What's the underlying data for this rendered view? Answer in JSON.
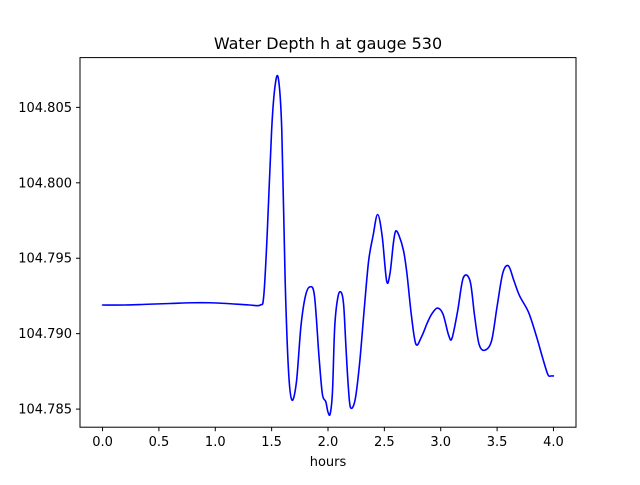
{
  "chart_data": {
    "type": "line",
    "title": "Water Depth h at gauge 530",
    "xlabel": "hours",
    "ylabel": "",
    "xlim": [
      -0.2,
      4.2
    ],
    "ylim": [
      104.7838,
      104.8083
    ],
    "xticks": [
      0.0,
      0.5,
      1.0,
      1.5,
      2.0,
      2.5,
      3.0,
      3.5,
      4.0
    ],
    "xtick_labels": [
      "0.0",
      "0.5",
      "1.0",
      "1.5",
      "2.0",
      "2.5",
      "3.0",
      "3.5",
      "4.0"
    ],
    "yticks": [
      104.785,
      104.79,
      104.795,
      104.8,
      104.805
    ],
    "ytick_labels": [
      "104.785",
      "104.790",
      "104.795",
      "104.800",
      "104.805"
    ],
    "grid": false,
    "series": [
      {
        "color": "#0000ff",
        "x": [
          0.0,
          0.2,
          0.4,
          0.6,
          0.8,
          0.95,
          1.1,
          1.3,
          1.4,
          1.43,
          1.46,
          1.5,
          1.53,
          1.56,
          1.59,
          1.62,
          1.65,
          1.68,
          1.72,
          1.76,
          1.8,
          1.84,
          1.88,
          1.92,
          1.95,
          1.98,
          2.0,
          2.02,
          2.04,
          2.06,
          2.09,
          2.12,
          2.14,
          2.16,
          2.18,
          2.2,
          2.24,
          2.28,
          2.32,
          2.36,
          2.4,
          2.44,
          2.48,
          2.52,
          2.55,
          2.58,
          2.6,
          2.63,
          2.67,
          2.7,
          2.74,
          2.78,
          2.83,
          2.88,
          2.92,
          2.97,
          3.02,
          3.07,
          3.1,
          3.15,
          3.2,
          3.26,
          3.3,
          3.34,
          3.39,
          3.45,
          3.5,
          3.55,
          3.6,
          3.65,
          3.7,
          3.78,
          3.85,
          3.9,
          3.95,
          3.98,
          4.0
        ],
        "y": [
          104.7919,
          104.7919,
          104.79195,
          104.792,
          104.79205,
          104.79205,
          104.792,
          104.7919,
          104.7919,
          104.7925,
          104.7965,
          104.8035,
          104.8064,
          104.8069,
          104.8035,
          104.7935,
          104.7875,
          104.7856,
          104.7868,
          104.7905,
          104.7925,
          104.7931,
          104.7925,
          104.7885,
          104.786,
          104.7855,
          104.7848,
          104.7847,
          104.7862,
          104.7905,
          104.7925,
          104.7927,
          104.7918,
          104.789,
          104.7865,
          104.7851,
          104.7856,
          104.788,
          104.7915,
          104.7948,
          104.7965,
          104.7979,
          104.7965,
          104.7935,
          104.794,
          104.796,
          104.7968,
          104.7965,
          104.7955,
          104.794,
          104.7912,
          104.7893,
          104.7898,
          104.7907,
          104.7913,
          104.7917,
          104.7913,
          104.7899,
          104.7897,
          104.7915,
          104.7937,
          104.7935,
          104.7912,
          104.7893,
          104.7889,
          104.7895,
          104.7918,
          104.794,
          104.7945,
          104.7935,
          104.7925,
          104.7914,
          104.7898,
          104.7885,
          104.7873,
          104.7872,
          104.7872
        ]
      }
    ]
  }
}
